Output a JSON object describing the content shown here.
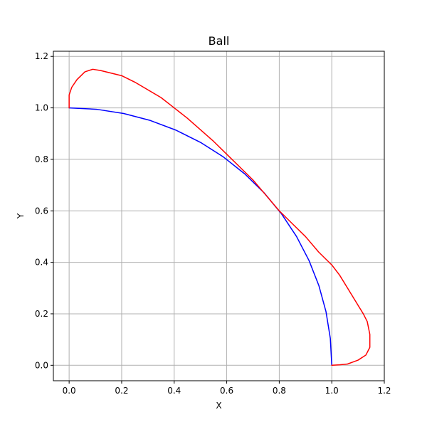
{
  "chart_data": {
    "type": "line",
    "title": "Ball",
    "xlabel": "X",
    "ylabel": "Y",
    "xlim": [
      -0.06,
      1.2
    ],
    "ylim": [
      -0.06,
      1.22
    ],
    "xticks": [
      0.0,
      0.2,
      0.4,
      0.6,
      0.8,
      1.0,
      1.2
    ],
    "xtick_labels": [
      "0.0",
      "0.2",
      "0.4",
      "0.6",
      "0.8",
      "1.0",
      "1.2"
    ],
    "yticks": [
      0.0,
      0.2,
      0.4,
      0.6,
      0.8,
      1.0,
      1.2
    ],
    "ytick_labels": [
      "0.0",
      "0.2",
      "0.4",
      "0.6",
      "0.8",
      "1.0",
      "1.2"
    ],
    "grid": true,
    "legend": "none",
    "series": [
      {
        "color": "#0000ff",
        "x": [
          0.0,
          0.1045,
          0.2079,
          0.309,
          0.4067,
          0.5,
          0.5878,
          0.6691,
          0.7431,
          0.809,
          0.866,
          0.9135,
          0.9511,
          0.9781,
          0.9945,
          1.0
        ],
        "y": [
          1.0,
          0.9945,
          0.9781,
          0.9511,
          0.9135,
          0.866,
          0.809,
          0.7431,
          0.6691,
          0.5878,
          0.5,
          0.4067,
          0.309,
          0.2079,
          0.1045,
          0.0
        ]
      },
      {
        "color": "#ff0000",
        "x": [
          0.0,
          0.0,
          0.01,
          0.03,
          0.06,
          0.09,
          0.12,
          0.16,
          0.2,
          0.25,
          0.3,
          0.35,
          0.4,
          0.45,
          0.5,
          0.55,
          0.6,
          0.65,
          0.7,
          0.75,
          0.8,
          0.85,
          0.9,
          0.95,
          1.0,
          1.03,
          1.06,
          1.09,
          1.12,
          1.135,
          1.145,
          1.145,
          1.13,
          1.1,
          1.06,
          1.03,
          1.0
        ],
        "y": [
          1.0,
          1.05,
          1.08,
          1.11,
          1.14,
          1.15,
          1.145,
          1.135,
          1.125,
          1.1,
          1.07,
          1.04,
          1.0,
          0.96,
          0.915,
          0.87,
          0.82,
          0.77,
          0.72,
          0.66,
          0.6,
          0.55,
          0.5,
          0.44,
          0.39,
          0.35,
          0.3,
          0.25,
          0.2,
          0.17,
          0.12,
          0.07,
          0.04,
          0.02,
          0.005,
          0.002,
          0.0
        ]
      }
    ]
  }
}
